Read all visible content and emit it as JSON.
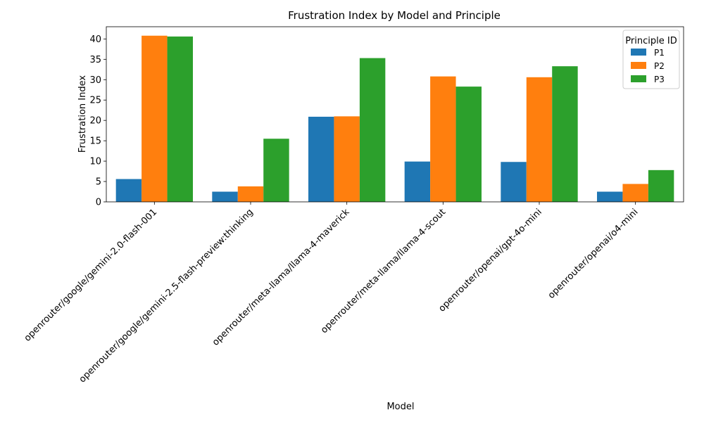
{
  "chart_data": {
    "type": "bar",
    "title": "Frustration Index by Model and Principle",
    "xlabel": "Model",
    "ylabel": "Frustration Index",
    "ylim": [
      0,
      43
    ],
    "yticks": [
      0,
      5,
      10,
      15,
      20,
      25,
      30,
      35,
      40
    ],
    "grid": false,
    "legend": {
      "title": "Principle ID",
      "placement": "top-right"
    },
    "categories": [
      "openrouter/google/gemini-2.0-flash-001",
      "openrouter/google/gemini-2.5-flash-preview:thinking",
      "openrouter/meta-llama/llama-4-maverick",
      "openrouter/meta-llama/llama-4-scout",
      "openrouter/openai/gpt-4o-mini",
      "openrouter/openai/o4-mini"
    ],
    "series": [
      {
        "name": "P1",
        "color": "#1f77b4",
        "values": [
          5.6,
          2.5,
          20.9,
          9.9,
          9.8,
          2.5
        ]
      },
      {
        "name": "P2",
        "color": "#ff7f0e",
        "values": [
          40.8,
          3.8,
          21.0,
          30.8,
          30.6,
          4.4
        ]
      },
      {
        "name": "P3",
        "color": "#2ca02c",
        "values": [
          40.6,
          15.5,
          35.3,
          28.3,
          33.3,
          7.8
        ]
      }
    ]
  }
}
